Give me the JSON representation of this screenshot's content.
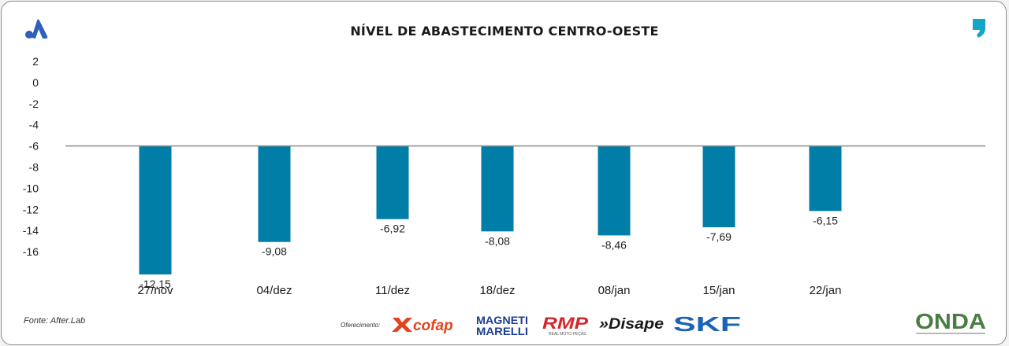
{
  "chart_data": {
    "type": "bar",
    "title": "NÍVEL DE ABASTECIMENTO CENTRO-OESTE",
    "categories": [
      "27/nov",
      "04/dez",
      "11/dez",
      "18/dez",
      "08/jan",
      "15/jan",
      "22/jan"
    ],
    "values": [
      -12.15,
      -9.08,
      -6.92,
      -8.08,
      -8.46,
      -7.69,
      -6.15
    ],
    "value_labels": [
      "-12,15",
      "-9,08",
      "-6,92",
      "-8,08",
      "-8,46",
      "-7,69",
      "-6,15"
    ],
    "y_ticks": [
      2,
      0,
      -2,
      -4,
      -6,
      -8,
      -10,
      -12,
      -14,
      -16
    ],
    "y_tick_labels": [
      "2",
      "0",
      "-2",
      "-4",
      "-6",
      "-8",
      "-10",
      "-12",
      "-14",
      "-16"
    ],
    "xlabel": "",
    "ylabel": "",
    "bar_color": "#007ea7",
    "baseline_color": "#8c8c8c",
    "grid": false,
    "legend": "none"
  },
  "footer": {
    "source": "Fonte: After.Lab",
    "sponsor_label": "Oferecimento:",
    "sponsors": [
      "cofap",
      "MAGNETI MARELLI",
      "RMP",
      "REAL MOTO PEÇAS",
      "»Disape",
      "SKF"
    ],
    "brand": "ONDA"
  },
  "colors": {
    "accent": "#2f5fb8",
    "cofap": "#e2441e",
    "magneti": "#1d3f93",
    "rmp": "#d7262a",
    "skf": "#1b63b5",
    "onda_green": "#4a7d44",
    "onda_blue": "#3f5e86"
  }
}
